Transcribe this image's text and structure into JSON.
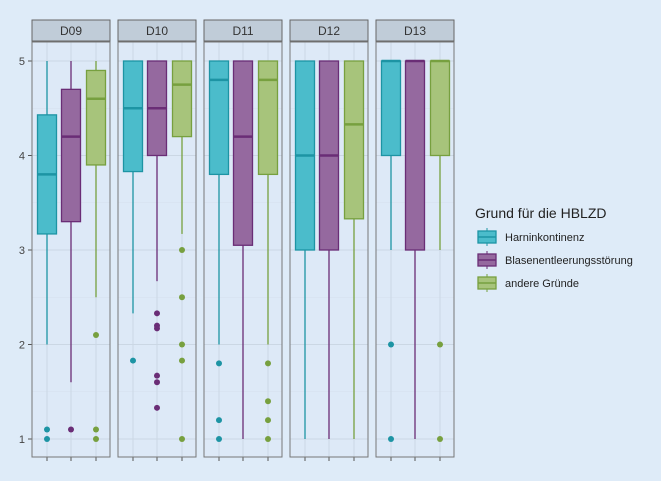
{
  "chart_data": {
    "type": "boxplot",
    "ylim": [
      0.8,
      5.2
    ],
    "yticks": [
      1,
      2,
      3,
      4,
      5
    ],
    "grid": true,
    "legend": {
      "title": "Grund für die HBLZD",
      "position": "right"
    },
    "series": [
      {
        "name": "Harninkontinenz",
        "fill": "#4bbccb",
        "stroke": "#1d94a4"
      },
      {
        "name": " Blasenentleerungsstörung",
        "fill": "#95699f",
        "stroke": "#6a2d76"
      },
      {
        "name": "andere Gründe",
        "fill": "#a7c47b",
        "stroke": "#77a03f"
      }
    ],
    "facets": [
      {
        "label": "D09",
        "boxes": [
          {
            "low": 2,
            "q1": 3.17,
            "median": 3.8,
            "q3": 4.43,
            "high": 5,
            "outliers": [
              1.1,
              1.0
            ]
          },
          {
            "low": 1.6,
            "q1": 3.3,
            "median": 4.2,
            "q3": 4.7,
            "high": 5,
            "outliers": [
              1.1
            ]
          },
          {
            "low": 2.5,
            "q1": 3.9,
            "median": 4.6,
            "q3": 4.9,
            "high": 5,
            "outliers": [
              2.1,
              1.1,
              1.0
            ]
          }
        ]
      },
      {
        "label": "D10",
        "boxes": [
          {
            "low": 2.33,
            "q1": 3.83,
            "median": 4.5,
            "q3": 5,
            "high": 5,
            "outliers": [
              1.83
            ]
          },
          {
            "low": 2.67,
            "q1": 4,
            "median": 4.5,
            "q3": 5,
            "high": 5,
            "outliers": [
              2.33,
              2.2,
              2.17,
              1.67,
              1.6,
              1.33
            ]
          },
          {
            "low": 3.17,
            "q1": 4.2,
            "median": 4.75,
            "q3": 5,
            "high": 5,
            "outliers": [
              3,
              2.5,
              2,
              1.83,
              1
            ]
          }
        ]
      },
      {
        "label": "D11",
        "boxes": [
          {
            "low": 2,
            "q1": 3.8,
            "median": 4.8,
            "q3": 5,
            "high": 5,
            "outliers": [
              1.8,
              1.2,
              1
            ]
          },
          {
            "low": 1,
            "q1": 3.05,
            "median": 4.2,
            "q3": 5,
            "high": 5,
            "outliers": []
          },
          {
            "low": 2,
            "q1": 3.8,
            "median": 4.8,
            "q3": 5,
            "high": 5,
            "outliers": [
              1.8,
              1.4,
              1.2,
              1
            ]
          }
        ]
      },
      {
        "label": "D12",
        "boxes": [
          {
            "low": 1,
            "q1": 3,
            "median": 4,
            "q3": 5,
            "high": 5,
            "outliers": []
          },
          {
            "low": 1,
            "q1": 3,
            "median": 4,
            "q3": 5,
            "high": 5,
            "outliers": []
          },
          {
            "low": 1,
            "q1": 3.33,
            "median": 4.33,
            "q3": 5,
            "high": 5,
            "outliers": []
          }
        ]
      },
      {
        "label": "D13",
        "boxes": [
          {
            "low": 3,
            "q1": 4,
            "median": 5,
            "q3": 5,
            "high": 5,
            "outliers": [
              2,
              1
            ]
          },
          {
            "low": 1,
            "q1": 3,
            "median": 5,
            "q3": 5,
            "high": 5,
            "outliers": []
          },
          {
            "low": 3,
            "q1": 4,
            "median": 5,
            "q3": 5,
            "high": 5,
            "outliers": [
              2,
              1
            ]
          }
        ]
      }
    ]
  }
}
